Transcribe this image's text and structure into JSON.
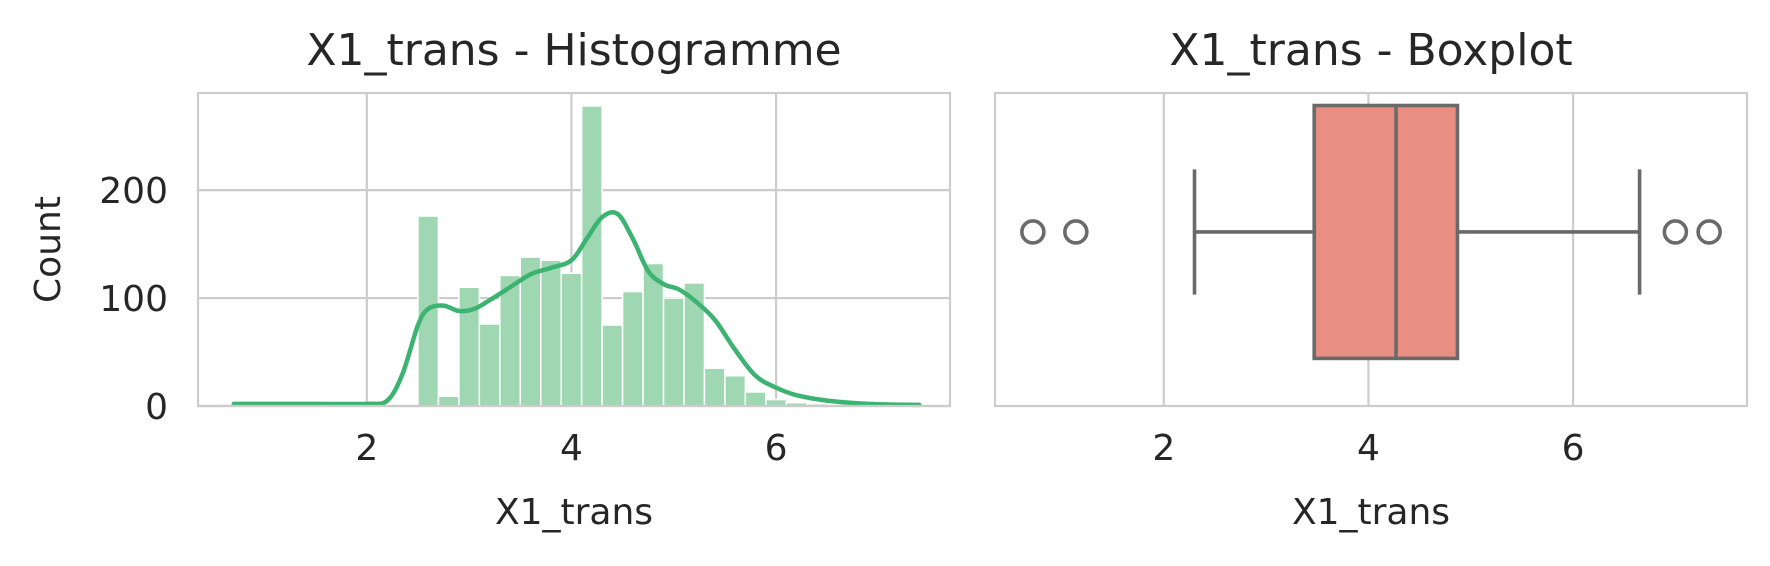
{
  "chart_data": [
    {
      "type": "bar",
      "subtype": "histogram_with_kde",
      "title": "X1_trans - Histogramme",
      "xlabel": "X1_trans",
      "ylabel": "Count",
      "xlim": [
        0.35,
        7.7
      ],
      "ylim": [
        0,
        290
      ],
      "xticks": [
        2,
        4,
        6
      ],
      "yticks": [
        0,
        100,
        200
      ],
      "grid": true,
      "bar_color": "#9fd7b3",
      "line_color": "#3cb371",
      "bins": [
        {
          "x0": 2.5,
          "x1": 2.7,
          "count": 176
        },
        {
          "x0": 2.7,
          "x1": 2.9,
          "count": 9
        },
        {
          "x0": 2.9,
          "x1": 3.1,
          "count": 110
        },
        {
          "x0": 3.1,
          "x1": 3.3,
          "count": 76
        },
        {
          "x0": 3.3,
          "x1": 3.5,
          "count": 121
        },
        {
          "x0": 3.5,
          "x1": 3.7,
          "count": 138
        },
        {
          "x0": 3.7,
          "x1": 3.9,
          "count": 135
        },
        {
          "x0": 3.9,
          "x1": 4.1,
          "count": 123
        },
        {
          "x0": 4.1,
          "x1": 4.3,
          "count": 278
        },
        {
          "x0": 4.3,
          "x1": 4.5,
          "count": 75
        },
        {
          "x0": 4.5,
          "x1": 4.7,
          "count": 106
        },
        {
          "x0": 4.7,
          "x1": 4.9,
          "count": 132
        },
        {
          "x0": 4.9,
          "x1": 5.1,
          "count": 100
        },
        {
          "x0": 5.1,
          "x1": 5.3,
          "count": 114
        },
        {
          "x0": 5.3,
          "x1": 5.5,
          "count": 35
        },
        {
          "x0": 5.5,
          "x1": 5.7,
          "count": 28
        },
        {
          "x0": 5.7,
          "x1": 5.9,
          "count": 13
        },
        {
          "x0": 5.9,
          "x1": 6.1,
          "count": 6
        },
        {
          "x0": 6.1,
          "x1": 6.3,
          "count": 3
        },
        {
          "x0": 6.3,
          "x1": 6.5,
          "count": 2
        }
      ],
      "kde": {
        "x": [
          0.7,
          1.5,
          2.0,
          2.2,
          2.35,
          2.5,
          2.6,
          2.75,
          2.9,
          3.05,
          3.2,
          3.4,
          3.6,
          3.8,
          4.0,
          4.15,
          4.3,
          4.45,
          4.6,
          4.75,
          4.9,
          5.05,
          5.2,
          5.4,
          5.6,
          5.8,
          6.0,
          6.2,
          6.5,
          6.9,
          7.4
        ],
        "y": [
          2,
          2,
          2,
          5,
          30,
          75,
          90,
          93,
          88,
          90,
          98,
          110,
          122,
          128,
          135,
          155,
          175,
          178,
          155,
          125,
          113,
          108,
          98,
          80,
          52,
          28,
          17,
          10,
          5,
          2,
          1
        ]
      }
    },
    {
      "type": "boxplot",
      "title": "X1_trans - Boxplot",
      "xlabel": "X1_trans",
      "xlim": [
        0.35,
        7.7
      ],
      "xticks": [
        2,
        4,
        6
      ],
      "grid": true,
      "box_color": "#e88e83",
      "whisker_low": 2.3,
      "q1": 3.47,
      "median": 4.27,
      "q3": 4.87,
      "whisker_high": 6.65,
      "outliers": [
        0.72,
        1.14,
        7.0,
        7.33
      ]
    }
  ]
}
